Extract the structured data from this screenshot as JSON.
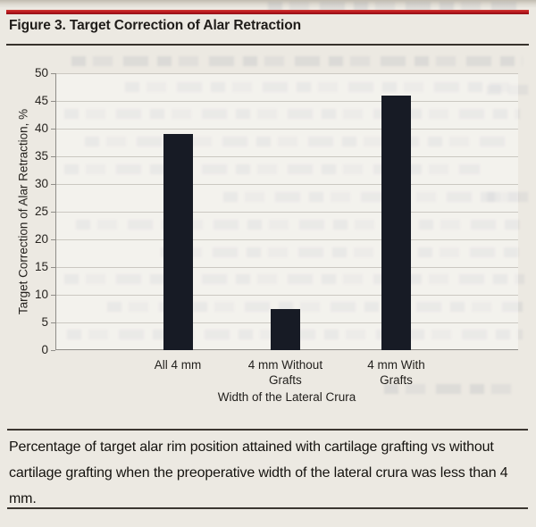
{
  "figure": {
    "title": "Figure 3. Target Correction of Alar Retraction"
  },
  "chart_data": {
    "type": "bar",
    "title": "Figure 3. Target Correction of Alar Retraction",
    "categories": [
      [
        "All 4 mm"
      ],
      [
        "4 mm Without",
        "Grafts"
      ],
      [
        "4 mm With",
        "Grafts"
      ]
    ],
    "values": [
      39,
      7.5,
      46
    ],
    "xlabel": "Width of the Lateral Crura",
    "ylabel": "Target Correction of Alar Retraction, %",
    "ylim": [
      0,
      50
    ],
    "yticks": [
      0,
      5,
      10,
      15,
      20,
      25,
      30,
      35,
      40,
      45,
      50
    ],
    "grid": true,
    "legend": false
  },
  "caption": {
    "text": "Percentage of target alar rim position attained with cartilage grafting vs without cartilage grafting when the preoperative width of the lateral crura was less than 4 mm."
  },
  "colors": {
    "accent_red": "#b5161d",
    "bar_color": "#171b25",
    "grid_color": "#cbc8c1",
    "axis_color": "#8f8d88",
    "rule_color": "#37322c",
    "text_color": "#1f1c19",
    "page_background": "#ece9e2"
  }
}
